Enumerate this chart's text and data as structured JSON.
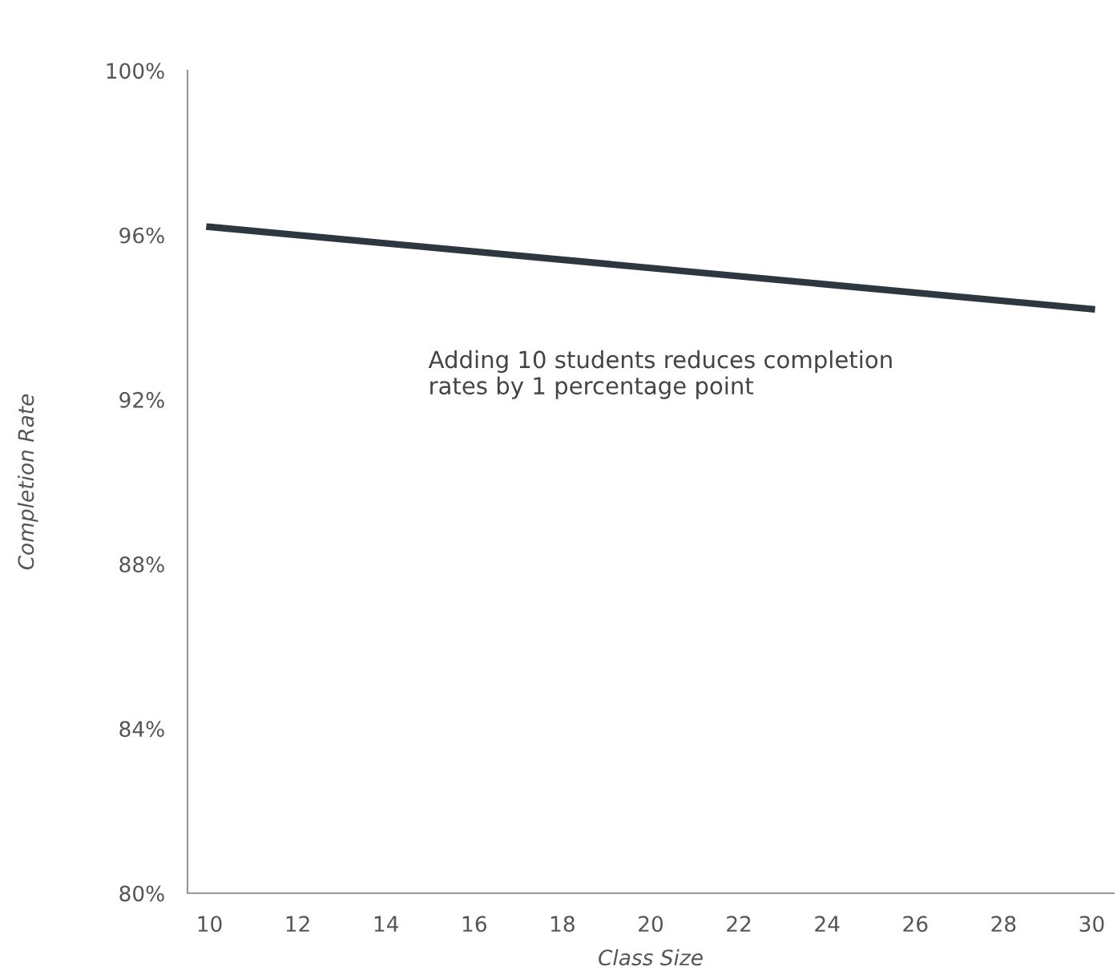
{
  "chart_data": {
    "type": "line",
    "xlabel": "Class Size",
    "ylabel": "Completion Rate",
    "x": [
      10,
      30
    ],
    "series": [
      {
        "color": "#2e3740",
        "values": [
          96.2,
          94.2
        ]
      }
    ],
    "xlim": [
      9.5,
      30.5
    ],
    "xticks": [
      10,
      12,
      14,
      16,
      18,
      20,
      22,
      24,
      26,
      28,
      30
    ],
    "ylim": [
      80,
      100
    ],
    "yticks": [
      {
        "value": 80,
        "label": "80%"
      },
      {
        "value": 84,
        "label": "84%"
      },
      {
        "value": 88,
        "label": "88%"
      },
      {
        "value": 92,
        "label": "92%"
      },
      {
        "value": 96,
        "label": "96%"
      },
      {
        "value": 100,
        "label": "100%"
      }
    ],
    "annotations": [
      "Adding 10 students reduces completion rates by 1 percentage point"
    ],
    "grid": false,
    "legend": false,
    "marker": "none",
    "line_style": "solid"
  }
}
